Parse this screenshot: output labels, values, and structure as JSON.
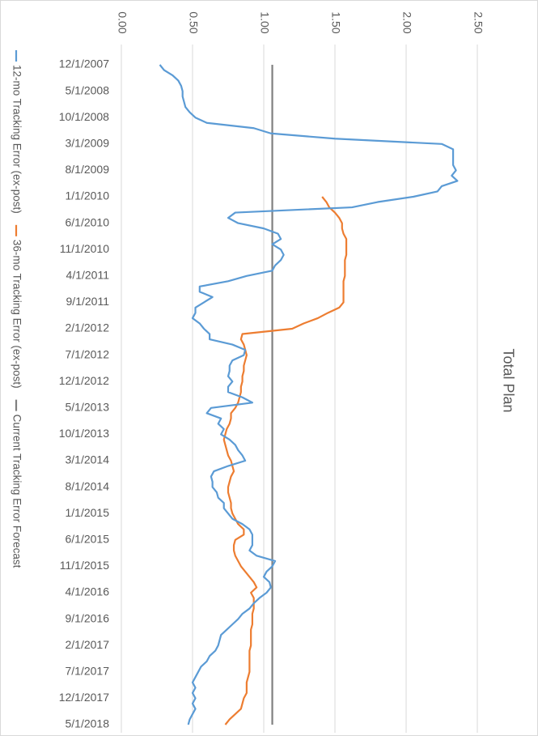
{
  "chart_data": {
    "type": "line",
    "title": "Total Plan",
    "categories": [
      "12/1/2007",
      null,
      null,
      null,
      null,
      "5/1/2008",
      null,
      null,
      null,
      null,
      "10/1/2008",
      null,
      null,
      null,
      null,
      "3/1/2009",
      null,
      null,
      null,
      null,
      "8/1/2009",
      null,
      null,
      null,
      null,
      "1/1/2010",
      null,
      null,
      null,
      null,
      "6/1/2010",
      null,
      null,
      null,
      null,
      "11/1/2010",
      null,
      null,
      null,
      null,
      "4/1/2011",
      null,
      null,
      null,
      null,
      "9/1/2011",
      null,
      null,
      null,
      null,
      "2/1/2012",
      null,
      null,
      null,
      null,
      "7/1/2012",
      null,
      null,
      null,
      null,
      "12/1/2012",
      null,
      null,
      null,
      null,
      "5/1/2013",
      null,
      null,
      null,
      null,
      "10/1/2013",
      null,
      null,
      null,
      null,
      "3/1/2014",
      null,
      null,
      null,
      null,
      "8/1/2014",
      null,
      null,
      null,
      null,
      "1/1/2015",
      null,
      null,
      null,
      null,
      "6/1/2015",
      null,
      null,
      null,
      null,
      "11/1/2015",
      null,
      null,
      null,
      null,
      "4/1/2016",
      null,
      null,
      null,
      null,
      "9/1/2016",
      null,
      null,
      null,
      null,
      "2/1/2017",
      null,
      null,
      null,
      null,
      "7/1/2017",
      null,
      null,
      null,
      null,
      "12/1/2017",
      null,
      null,
      null,
      null,
      "5/1/2018"
    ],
    "series": [
      {
        "name": "12-mo Tracking Error (ex-post)",
        "color": "#5b9bd5",
        "values": [
          0.27,
          0.3,
          0.36,
          0.4,
          0.42,
          0.43,
          0.43,
          0.44,
          0.45,
          0.48,
          0.52,
          0.6,
          0.93,
          1.05,
          1.5,
          2.25,
          2.33,
          2.33,
          2.33,
          2.33,
          2.35,
          2.32,
          2.36,
          2.25,
          2.22,
          2.05,
          1.8,
          1.62,
          0.8,
          0.75,
          0.82,
          1.0,
          1.1,
          1.12,
          1.06,
          1.12,
          1.14,
          1.12,
          1.08,
          1.06,
          0.88,
          0.75,
          0.55,
          0.55,
          0.64,
          0.58,
          0.52,
          0.52,
          0.5,
          0.55,
          0.58,
          0.62,
          0.62,
          0.78,
          0.87,
          0.86,
          0.78,
          0.76,
          0.76,
          0.75,
          0.78,
          0.75,
          0.75,
          0.85,
          0.92,
          0.63,
          0.6,
          0.7,
          0.68,
          0.72,
          0.7,
          0.76,
          0.8,
          0.82,
          0.85,
          0.87,
          0.75,
          0.65,
          0.63,
          0.64,
          0.64,
          0.67,
          0.68,
          0.72,
          0.72,
          0.75,
          0.78,
          0.85,
          0.9,
          0.92,
          0.92,
          0.92,
          0.9,
          0.95,
          1.08,
          1.06,
          1.02,
          1.0,
          1.04,
          1.05,
          1.02,
          0.97,
          0.93,
          0.9,
          0.85,
          0.82,
          0.78,
          0.74,
          0.7,
          0.69,
          0.68,
          0.66,
          0.62,
          0.6,
          0.56,
          0.54,
          0.52,
          0.5,
          0.52,
          0.5,
          0.52,
          0.5,
          0.52,
          0.5,
          0.48,
          0.47
        ]
      },
      {
        "name": "36-mo Tracking Error (ex-post)",
        "color": "#ed7d31",
        "values": [
          null,
          null,
          null,
          null,
          null,
          null,
          null,
          null,
          null,
          null,
          null,
          null,
          null,
          null,
          null,
          null,
          null,
          null,
          null,
          null,
          null,
          null,
          null,
          null,
          null,
          1.41,
          1.44,
          1.46,
          1.5,
          1.53,
          1.55,
          1.55,
          1.56,
          1.58,
          1.58,
          1.58,
          1.58,
          1.57,
          1.57,
          1.57,
          1.57,
          1.56,
          1.56,
          1.56,
          1.56,
          1.56,
          1.53,
          1.45,
          1.38,
          1.28,
          1.2,
          0.85,
          0.84,
          0.86,
          0.87,
          0.88,
          0.87,
          0.86,
          0.86,
          0.85,
          0.85,
          0.84,
          0.84,
          0.83,
          0.82,
          0.8,
          0.77,
          0.77,
          0.76,
          0.74,
          0.73,
          0.72,
          0.73,
          0.74,
          0.75,
          0.77,
          0.78,
          0.79,
          0.77,
          0.76,
          0.75,
          0.75,
          0.76,
          0.77,
          0.77,
          0.78,
          0.8,
          0.82,
          0.86,
          0.86,
          0.8,
          0.79,
          0.79,
          0.8,
          0.82,
          0.84,
          0.87,
          0.9,
          0.93,
          0.95,
          0.91,
          0.93,
          0.93,
          0.93,
          0.92,
          0.92,
          0.92,
          0.91,
          0.91,
          0.91,
          0.91,
          0.9,
          0.9,
          0.9,
          0.9,
          0.9,
          0.89,
          0.88,
          0.88,
          0.88,
          0.86,
          0.85,
          0.84,
          0.8,
          0.76,
          0.73
        ]
      },
      {
        "name": "Current Tracking Error Forecast",
        "color": "#808080",
        "values": [
          1.06,
          1.06,
          1.06,
          1.06,
          1.06,
          1.06,
          1.06,
          1.06,
          1.06,
          1.06,
          1.06,
          1.06,
          1.06,
          1.06,
          1.06,
          1.06,
          1.06,
          1.06,
          1.06,
          1.06,
          1.06,
          1.06,
          1.06,
          1.06,
          1.06,
          1.06,
          1.06,
          1.06,
          1.06,
          1.06,
          1.06,
          1.06,
          1.06,
          1.06,
          1.06,
          1.06,
          1.06,
          1.06,
          1.06,
          1.06,
          1.06,
          1.06,
          1.06,
          1.06,
          1.06,
          1.06,
          1.06,
          1.06,
          1.06,
          1.06,
          1.06,
          1.06,
          1.06,
          1.06,
          1.06,
          1.06,
          1.06,
          1.06,
          1.06,
          1.06,
          1.06,
          1.06,
          1.06,
          1.06,
          1.06,
          1.06,
          1.06,
          1.06,
          1.06,
          1.06,
          1.06,
          1.06,
          1.06,
          1.06,
          1.06,
          1.06,
          1.06,
          1.06,
          1.06,
          1.06,
          1.06,
          1.06,
          1.06,
          1.06,
          1.06,
          1.06,
          1.06,
          1.06,
          1.06,
          1.06,
          1.06,
          1.06,
          1.06,
          1.06,
          1.06,
          1.06,
          1.06,
          1.06,
          1.06,
          1.06,
          1.06,
          1.06,
          1.06,
          1.06,
          1.06,
          1.06,
          1.06,
          1.06,
          1.06,
          1.06,
          1.06,
          1.06,
          1.06,
          1.06,
          1.06,
          1.06,
          1.06,
          1.06,
          1.06,
          1.06,
          1.06,
          1.06,
          1.06,
          1.06,
          1.06,
          1.06
        ]
      }
    ],
    "ylim": [
      0,
      2.5
    ],
    "yticks": [
      {
        "value": 0,
        "label": "0.00"
      },
      {
        "value": 0.5,
        "label": "0.50"
      },
      {
        "value": 1,
        "label": "1.00"
      },
      {
        "value": 1.5,
        "label": "1.50"
      },
      {
        "value": 2,
        "label": "2.00"
      },
      {
        "value": 2.5,
        "label": "2.50"
      }
    ],
    "grid": true,
    "legend_position": "bottom"
  }
}
